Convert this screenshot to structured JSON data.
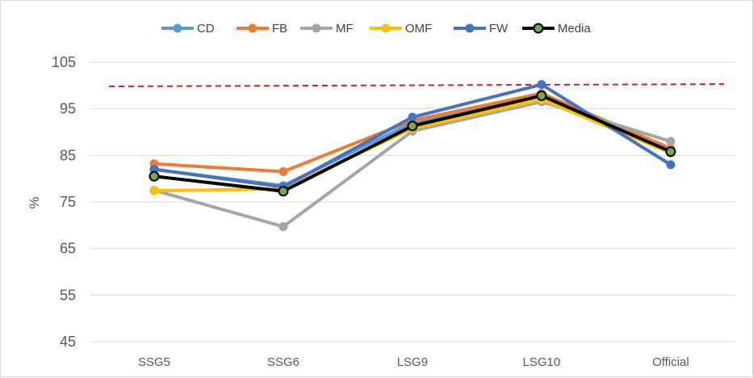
{
  "chart_data": {
    "type": "line",
    "title": "",
    "xlabel": "",
    "ylabel": "%",
    "ylim": [
      45,
      105
    ],
    "yticks": [
      45,
      55,
      65,
      75,
      85,
      95,
      105
    ],
    "grid": true,
    "legend_position": "top",
    "categories": [
      "SSG5",
      "SSG6",
      "LSG9",
      "LSG10",
      "Official"
    ],
    "reference_line": {
      "y_start": 99.8,
      "y_end": 100.3,
      "color": "#e31a1c",
      "style": "dashed"
    },
    "series": [
      {
        "name": "CD",
        "color": "#5b9bd5",
        "values": [
          82.0,
          78.5,
          92.0,
          98.0,
          86.0
        ]
      },
      {
        "name": "FB",
        "color": "#ed7d31",
        "values": [
          83.2,
          81.5,
          92.5,
          98.3,
          86.5
        ]
      },
      {
        "name": "MF",
        "color": "#a5a5a5",
        "values": [
          77.5,
          69.7,
          90.2,
          96.5,
          88.0
        ]
      },
      {
        "name": "OMF",
        "color": "#ffc000",
        "values": [
          77.4,
          77.8,
          90.8,
          97.0,
          85.5
        ]
      },
      {
        "name": "FW",
        "color": "#4472c4",
        "values": [
          82.0,
          78.2,
          93.2,
          100.2,
          83.0
        ]
      },
      {
        "name": "Media",
        "color": "#000000",
        "marker_fill": "#70ad47",
        "values": [
          80.5,
          77.3,
          91.3,
          97.8,
          85.8
        ]
      }
    ]
  }
}
